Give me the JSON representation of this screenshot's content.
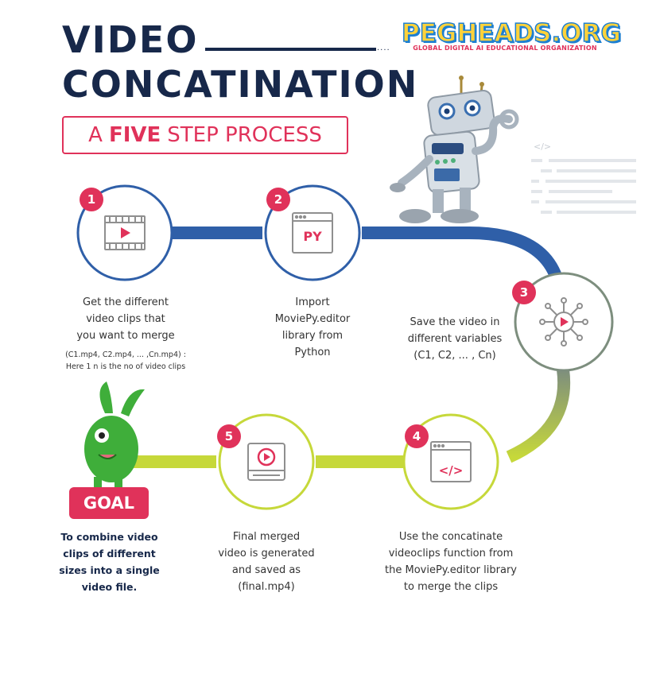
{
  "header": {
    "title_line1": "VIDEO",
    "title_line2": "CONCATINATION",
    "subtitle_pre": "A",
    "subtitle_strong": "FIVE",
    "subtitle_post": "STEP PROCESS"
  },
  "logo": {
    "name": "PEGHEADS.ORG",
    "tagline": "GLOBAL DIGITAL AI EDUCATIONAL ORGANIZATION"
  },
  "code_glyph": "</>",
  "colors": {
    "navy": "#17284a",
    "accent_red": "#e0325a",
    "blue_path": "#2f5fa8",
    "lime_path": "#c6d83a",
    "gray_green": "#7d8e7e"
  },
  "steps": [
    {
      "num": "1",
      "icon": "film-strip-play-icon",
      "lines": [
        "Get the different",
        "video clips that",
        "you want to merge"
      ],
      "note": [
        "(C1.mp4, C2.mp4, ... ,Cn.mp4) :",
        "Here 1 n is the no of video clips"
      ]
    },
    {
      "num": "2",
      "icon": "python-file-icon",
      "icon_text": "PY",
      "lines": [
        "Import",
        "MoviePy.editor",
        "library from",
        "Python"
      ]
    },
    {
      "num": "3",
      "icon": "network-play-icon",
      "lines": [
        "Save the video in",
        "different variables",
        "(C1, C2, ... , Cn)"
      ]
    },
    {
      "num": "4",
      "icon": "code-window-icon",
      "icon_text": "</>",
      "lines": [
        "Use the concatinate",
        "videoclips function from",
        "the MoviePy.editor library",
        "to merge the clips"
      ]
    },
    {
      "num": "5",
      "icon": "video-player-icon",
      "lines": [
        "Final merged",
        "video is generated",
        "and saved as",
        "(final.mp4)"
      ]
    }
  ],
  "goal": {
    "badge": "GOAL",
    "lines": [
      "To combine video",
      "clips of different",
      "sizes into a single",
      "video file."
    ]
  }
}
